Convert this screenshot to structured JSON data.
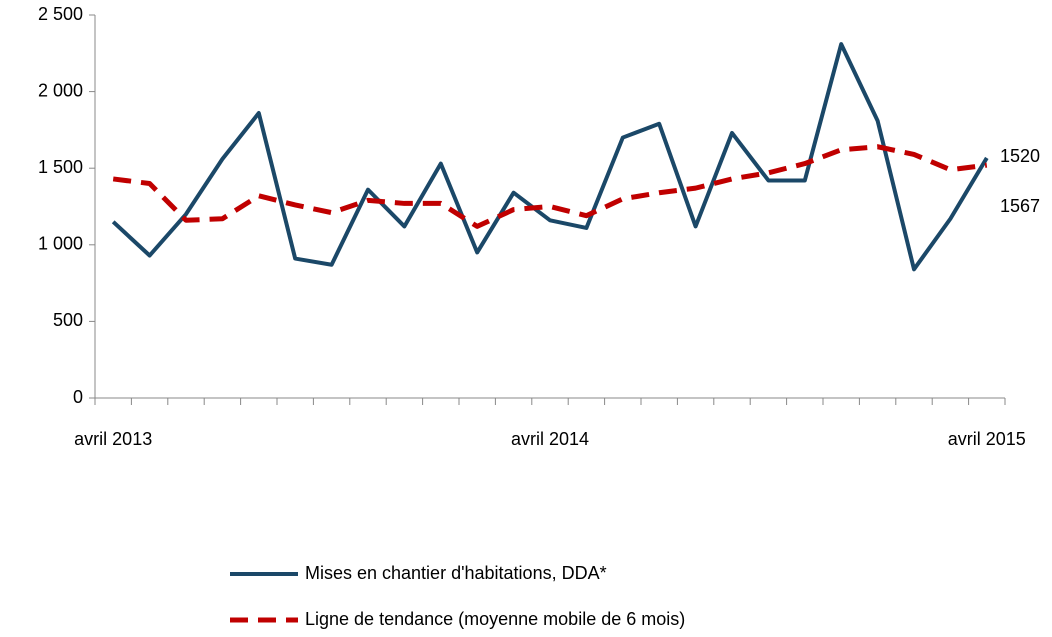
{
  "chart_data": {
    "type": "line",
    "categories": [
      "avril 2013",
      null,
      null,
      null,
      null,
      null,
      null,
      null,
      null,
      null,
      null,
      null,
      "avril 2014",
      null,
      null,
      null,
      null,
      null,
      null,
      null,
      null,
      null,
      null,
      null,
      "avril 2015"
    ],
    "series": [
      {
        "name": "Mises en chantier d'habitations, DDA*",
        "color": "#1b4868",
        "style": "solid",
        "values": [
          1150,
          930,
          1200,
          1560,
          1860,
          910,
          870,
          1360,
          1120,
          1530,
          950,
          1340,
          1160,
          1110,
          1700,
          1790,
          1120,
          1730,
          1420,
          1420,
          2310,
          1810,
          840,
          1170,
          1567
        ]
      },
      {
        "name": "Ligne de tendance (moyenne mobile de 6 mois)",
        "color": "#c00000",
        "style": "dashed",
        "values": [
          1430,
          1400,
          1160,
          1170,
          1320,
          1260,
          1210,
          1290,
          1270,
          1270,
          1120,
          1230,
          1250,
          1190,
          1300,
          1340,
          1370,
          1430,
          1470,
          1530,
          1620,
          1640,
          1590,
          1490,
          1520
        ]
      }
    ],
    "annotations": [
      "1520",
      "1567"
    ],
    "ylim": [
      0,
      2500
    ],
    "yticks": [
      0,
      500,
      {
        "value": 1000,
        "label": "1 000"
      },
      {
        "value": 1500,
        "label": "1 500"
      },
      {
        "value": 2000,
        "label": "2 000"
      },
      {
        "value": 2500,
        "label": "2 500"
      }
    ],
    "grid": false,
    "legend": "bottom"
  }
}
